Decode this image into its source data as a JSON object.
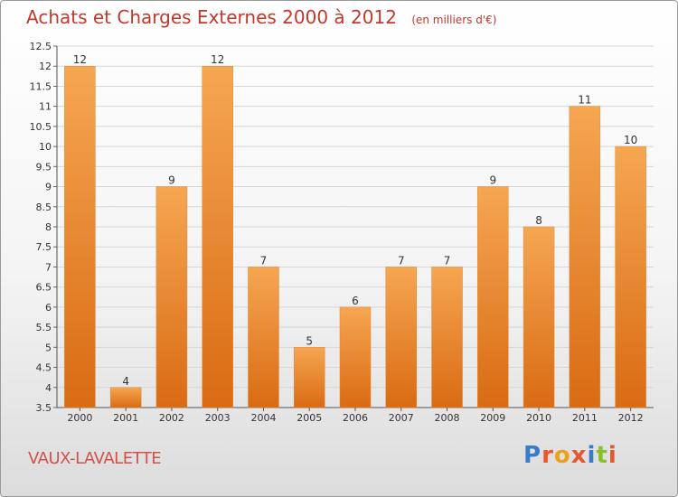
{
  "header": {
    "title": "Achats et Charges Externes 2000 à 2012",
    "unit": "(en milliers d'€)"
  },
  "footer": {
    "commune": "VAUX-LAVALETTE",
    "logo": "Proxiti"
  },
  "colors": {
    "bar_top": "#f6a652",
    "bar_bottom": "#d96b13",
    "title": "#c0392b",
    "logo": [
      "#3a7cc7",
      "#e8572c",
      "#e8a21b",
      "#e8572c",
      "#3a7cc7",
      "#8bbf2b",
      "#e8572c"
    ]
  },
  "chart_data": {
    "type": "bar",
    "categories": [
      "2000",
      "2001",
      "2002",
      "2003",
      "2004",
      "2005",
      "2006",
      "2007",
      "2008",
      "2009",
      "2010",
      "2011",
      "2012"
    ],
    "values": [
      12,
      4,
      9,
      12,
      7,
      5,
      6,
      7,
      7,
      9,
      8,
      11,
      10
    ],
    "data_labels": [
      "12",
      "4",
      "9",
      "12",
      "7",
      "5",
      "6",
      "7",
      "7",
      "9",
      "8",
      "11",
      "10"
    ],
    "ylim": [
      3.5,
      12.5
    ],
    "yticks": [
      3.5,
      4,
      4.5,
      5,
      5.5,
      6,
      6.5,
      7,
      7.5,
      8,
      8.5,
      9,
      9.5,
      10,
      10.5,
      11,
      11.5,
      12,
      12.5
    ],
    "ytick_labels": [
      "3.5",
      "4",
      "4.5",
      "5",
      "5.5",
      "6",
      "6.5",
      "7",
      "7.5",
      "8",
      "8.5",
      "9",
      "9.5",
      "10",
      "10.5",
      "11",
      "11.5",
      "12",
      "12.5"
    ],
    "grid": true
  }
}
